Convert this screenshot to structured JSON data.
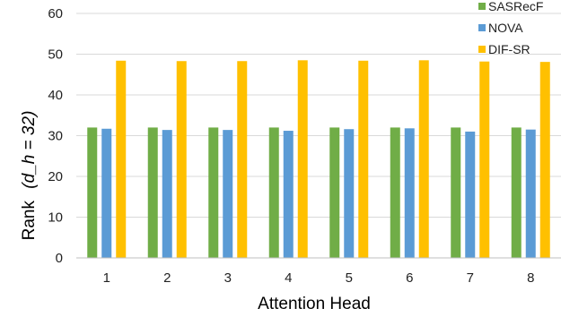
{
  "chart_data": {
    "type": "bar",
    "xlabel": "Attention Head",
    "ylabel": "Rank",
    "ylabel_math": "(d_h = 32)",
    "ylim": [
      0,
      60
    ],
    "yticks": [
      "0",
      "10",
      "20",
      "30",
      "40",
      "50",
      "60"
    ],
    "categories": [
      "1",
      "2",
      "3",
      "4",
      "5",
      "6",
      "7",
      "8"
    ],
    "grid": "horizontal",
    "legend_position": "top-right",
    "series": [
      {
        "name": "SASRecF",
        "color": "#70ad47",
        "values": [
          32.0,
          32.0,
          32.0,
          32.0,
          32.0,
          32.0,
          32.0,
          32.0
        ]
      },
      {
        "name": "NOVA",
        "color": "#5b9bd5",
        "values": [
          31.7,
          31.4,
          31.4,
          31.2,
          31.6,
          31.8,
          31.0,
          31.5
        ]
      },
      {
        "name": "DIF-SR",
        "color": "#ffc000",
        "values": [
          48.4,
          48.3,
          48.3,
          48.5,
          48.4,
          48.5,
          48.2,
          48.1
        ]
      }
    ]
  }
}
